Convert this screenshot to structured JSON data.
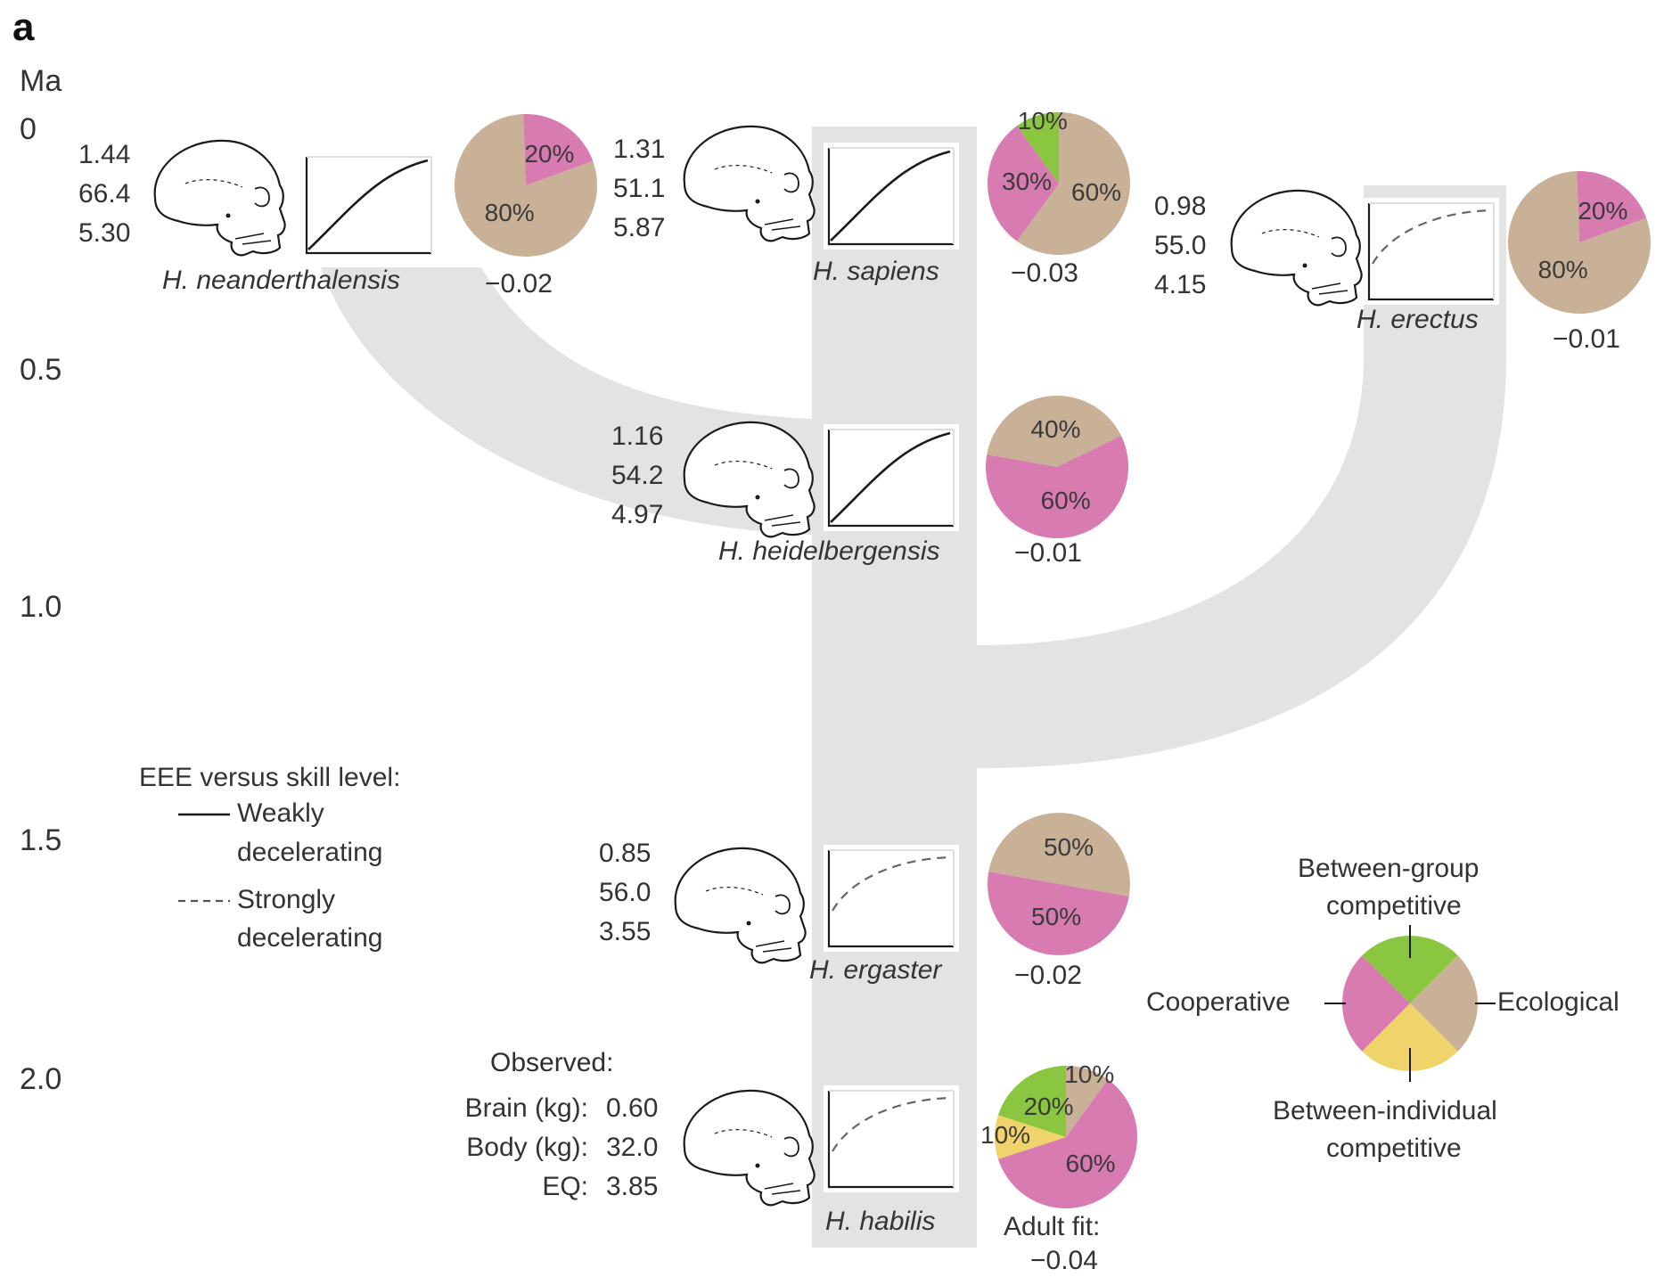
{
  "panel_label": "a",
  "axis": {
    "unit": "Ma",
    "ticks": [
      "0",
      "0.5",
      "1.0",
      "1.5",
      "2.0"
    ]
  },
  "colors": {
    "branch": "#e3e3e3",
    "ecological": "#c8b196",
    "cooperative": "#d77bb0",
    "between_group": "#8ac640",
    "between_individual": "#f0d36a"
  },
  "species": [
    {
      "id": "neanderthalensis",
      "name": "H. neanderthalensis",
      "stats": [
        "1.44",
        "66.4",
        "5.30"
      ],
      "curve": "Weakly decelerating",
      "fit": "−0.02",
      "pie": [
        {
          "category": "ecological",
          "value": 80,
          "label": "80%"
        },
        {
          "category": "cooperative",
          "value": 20,
          "label": "20%"
        }
      ]
    },
    {
      "id": "sapiens",
      "name": "H. sapiens",
      "stats": [
        "1.31",
        "51.1",
        "5.87"
      ],
      "curve": "Weakly decelerating",
      "fit": "−0.03",
      "pie": [
        {
          "category": "ecological",
          "value": 60,
          "label": "60%"
        },
        {
          "category": "cooperative",
          "value": 30,
          "label": "30%"
        },
        {
          "category": "between_group",
          "value": 10,
          "label": "10%"
        }
      ]
    },
    {
      "id": "erectus",
      "name": "H. erectus",
      "stats": [
        "0.98",
        "55.0",
        "4.15"
      ],
      "curve": "Strongly decelerating",
      "fit": "−0.01",
      "pie": [
        {
          "category": "ecological",
          "value": 80,
          "label": "80%"
        },
        {
          "category": "cooperative",
          "value": 20,
          "label": "20%"
        }
      ]
    },
    {
      "id": "heidelbergensis",
      "name": "H. heidelbergensis",
      "stats": [
        "1.16",
        "54.2",
        "4.97"
      ],
      "curve": "Weakly decelerating",
      "fit": "−0.01",
      "pie": [
        {
          "category": "ecological",
          "value": 40,
          "label": "40%"
        },
        {
          "category": "cooperative",
          "value": 60,
          "label": "60%"
        }
      ]
    },
    {
      "id": "ergaster",
      "name": "H. ergaster",
      "stats": [
        "0.85",
        "56.0",
        "3.55"
      ],
      "curve": "Strongly decelerating",
      "fit": "−0.02",
      "pie": [
        {
          "category": "ecological",
          "value": 50,
          "label": "50%"
        },
        {
          "category": "cooperative",
          "value": 50,
          "label": "50%"
        }
      ]
    },
    {
      "id": "habilis",
      "name": "H. habilis",
      "stats": [
        "0.60",
        "32.0",
        "3.85"
      ],
      "stat_labels": [
        "Brain (kg):",
        "Body (kg):",
        "EQ:"
      ],
      "observed_label": "Observed:",
      "curve": "Strongly decelerating",
      "fit_label": "Adult fit:",
      "fit": "−0.04",
      "pie": [
        {
          "category": "cooperative",
          "value": 60,
          "label": "60%"
        },
        {
          "category": "between_individual",
          "value": 10,
          "label": "10%"
        },
        {
          "category": "between_group",
          "value": 20,
          "label": "20%"
        },
        {
          "category": "ecological",
          "value": 10,
          "label": "10%"
        }
      ]
    }
  ],
  "curve_legend": {
    "title": "EEE versus skill level:",
    "weak": [
      "Weakly",
      "decelerating"
    ],
    "strong": [
      "Strongly",
      "decelerating"
    ]
  },
  "pie_legend": {
    "top": [
      "Between-group",
      "competitive"
    ],
    "left": "Cooperative",
    "right": "Ecological",
    "bottom": [
      "Between-individual",
      "competitive"
    ]
  }
}
